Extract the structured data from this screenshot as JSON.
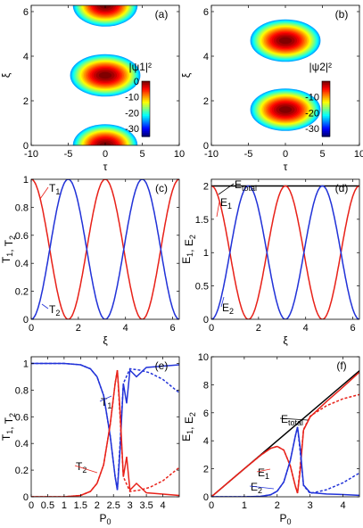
{
  "panels": [
    {
      "id": "a",
      "type": "heatmap",
      "panel_label": "(a)",
      "xlabel": "τ",
      "ylabel": "ξ",
      "xlim": [
        -10,
        10
      ],
      "ylim": [
        0,
        6.28
      ],
      "xticks": [
        -10,
        -5,
        0,
        5,
        10
      ],
      "yticks": [
        0,
        2,
        4,
        6
      ],
      "colorbar_label": "|ψ1|²",
      "colorbar_ticks": [
        0,
        -10,
        -20,
        -30
      ],
      "colorbar_range": [
        -35,
        0
      ],
      "colormap": "jet",
      "lobes": [
        {
          "center_xi": 0.0,
          "tau_halfwidth": 2.3
        },
        {
          "center_xi": 3.14,
          "tau_halfwidth": 2.5
        },
        {
          "center_xi": 6.28,
          "tau_halfwidth": 2.3
        }
      ]
    },
    {
      "id": "b",
      "type": "heatmap",
      "panel_label": "(b)",
      "xlabel": "τ",
      "ylabel": "ξ",
      "xlim": [
        -10,
        10
      ],
      "ylim": [
        0,
        6.28
      ],
      "xticks": [
        -10,
        -5,
        0,
        5,
        10
      ],
      "yticks": [
        0,
        2,
        4,
        6
      ],
      "colorbar_label": "|ψ2|²",
      "colorbar_ticks": [
        -10,
        -20,
        -30
      ],
      "colorbar_range": [
        -35,
        0
      ],
      "colormap": "jet",
      "lobes": [
        {
          "center_xi": 1.6,
          "tau_halfwidth": 2.5
        },
        {
          "center_xi": 4.7,
          "tau_halfwidth": 2.5
        }
      ]
    },
    {
      "id": "c",
      "type": "line",
      "panel_label": "(c)",
      "xlabel": "ξ",
      "ylabel": "T1, T2",
      "xlim": [
        0,
        6.28
      ],
      "ylim": [
        0,
        1
      ],
      "xticks": [
        0,
        2,
        4,
        6
      ],
      "yticks": [
        0,
        0.2,
        0.4,
        0.6,
        0.8,
        1
      ],
      "series": [
        {
          "name": "T1",
          "color": "#e8221a",
          "formula": "cos2",
          "period_xi": 3.14
        },
        {
          "name": "T2",
          "color": "#2233d8",
          "formula": "sin2",
          "period_xi": 3.14
        }
      ],
      "annotations": [
        {
          "text": "T",
          "sub": "1",
          "color": "#e8221a"
        },
        {
          "text": "T",
          "sub": "2",
          "color": "#2233d8"
        }
      ]
    },
    {
      "id": "d",
      "type": "line",
      "panel_label": "(d)",
      "xlabel": "ξ",
      "ylabel": "E1, E2",
      "xlim": [
        0,
        6.28
      ],
      "ylim": [
        0,
        2.1
      ],
      "xticks": [
        0,
        2,
        4,
        6
      ],
      "yticks": [
        0,
        0.5,
        1,
        1.5,
        2
      ],
      "series": [
        {
          "name": "Etotal",
          "color": "#000000",
          "constant": 2.0
        },
        {
          "name": "E1",
          "color": "#e8221a",
          "formula": "cos2",
          "amplitude": 2.0,
          "period_xi": 3.14
        },
        {
          "name": "E2",
          "color": "#2233d8",
          "formula": "sin2",
          "amplitude": 2.0,
          "period_xi": 3.14
        }
      ],
      "annotations": [
        {
          "text": "E",
          "sub": "total",
          "color": "#000000"
        },
        {
          "text": "E",
          "sub": "1",
          "color": "#e8221a"
        },
        {
          "text": "E",
          "sub": "2",
          "color": "#2233d8"
        }
      ]
    },
    {
      "id": "e",
      "type": "line",
      "panel_label": "(e)",
      "xlabel": "P0",
      "ylabel": "T1, T2",
      "xlim": [
        0,
        4.5
      ],
      "ylim": [
        0,
        1.05
      ],
      "xticks": [
        0,
        0.5,
        1,
        1.5,
        2,
        2.5,
        3,
        3.5,
        4
      ],
      "yticks": [
        0,
        0.2,
        0.4,
        0.6,
        0.8,
        1
      ],
      "series": [
        {
          "name": "T1",
          "color": "#2233d8",
          "style": "solid",
          "x": [
            0,
            1,
            1.5,
            1.8,
            2,
            2.2,
            2.4,
            2.55,
            2.62,
            2.7,
            2.8,
            2.9,
            3.0,
            3.2,
            3.5,
            4.0,
            4.5
          ],
          "y": [
            1.0,
            1.0,
            0.99,
            0.96,
            0.9,
            0.76,
            0.46,
            0.15,
            0.05,
            0.35,
            0.85,
            0.7,
            0.95,
            0.9,
            0.97,
            0.98,
            0.99
          ]
        },
        {
          "name": "T1 (dashed)",
          "color": "#2233d8",
          "style": "dashed",
          "x": [
            0,
            1,
            1.5,
            1.8,
            2,
            2.2,
            2.4,
            2.55,
            2.62,
            2.7,
            2.8,
            3.0,
            3.3,
            3.6,
            4.0,
            4.5
          ],
          "y": [
            1.0,
            1.0,
            0.99,
            0.96,
            0.9,
            0.76,
            0.46,
            0.15,
            0.05,
            0.4,
            0.85,
            0.96,
            0.95,
            0.93,
            0.88,
            0.78
          ]
        },
        {
          "name": "T2",
          "color": "#e8221a",
          "style": "solid",
          "x": [
            0,
            1,
            1.5,
            1.8,
            2,
            2.2,
            2.4,
            2.55,
            2.62,
            2.7,
            2.8,
            2.9,
            3.0,
            3.2,
            3.5,
            4.0,
            4.5
          ],
          "y": [
            0.0,
            0.0,
            0.01,
            0.04,
            0.1,
            0.24,
            0.54,
            0.85,
            0.95,
            0.65,
            0.15,
            0.3,
            0.05,
            0.1,
            0.03,
            0.02,
            0.01
          ]
        },
        {
          "name": "T2 (dashed)",
          "color": "#e8221a",
          "style": "dashed",
          "x": [
            0,
            1,
            1.5,
            1.8,
            2,
            2.2,
            2.4,
            2.55,
            2.62,
            2.7,
            2.8,
            3.0,
            3.3,
            3.6,
            4.0,
            4.5
          ],
          "y": [
            0.0,
            0.0,
            0.01,
            0.04,
            0.1,
            0.24,
            0.54,
            0.85,
            0.95,
            0.6,
            0.15,
            0.04,
            0.05,
            0.07,
            0.12,
            0.22
          ]
        }
      ],
      "annotations": [
        {
          "text": "T",
          "sub": "1",
          "color": "#2233d8"
        },
        {
          "text": "T",
          "sub": "2",
          "color": "#e8221a"
        }
      ]
    },
    {
      "id": "f",
      "type": "line",
      "panel_label": "(f)",
      "xlabel": "P0",
      "ylabel": "E1, E2",
      "xlim": [
        0,
        4.5
      ],
      "ylim": [
        0,
        10
      ],
      "xticks": [
        0,
        1,
        2,
        3,
        4
      ],
      "yticks": [
        0,
        2,
        4,
        6,
        8,
        10
      ],
      "series": [
        {
          "name": "Etotal",
          "color": "#000000",
          "style": "solid",
          "x": [
            0,
            4.5
          ],
          "y": [
            0,
            9.0
          ]
        },
        {
          "name": "E1",
          "color": "#e8221a",
          "style": "solid",
          "x": [
            0,
            1,
            1.5,
            1.8,
            2,
            2.2,
            2.4,
            2.55,
            2.62,
            2.7,
            2.8,
            3.0,
            3.5,
            4.0,
            4.5
          ],
          "y": [
            0,
            2.0,
            2.97,
            3.46,
            3.6,
            3.34,
            2.21,
            0.77,
            0.26,
            1.89,
            4.76,
            5.7,
            6.8,
            7.84,
            8.9
          ]
        },
        {
          "name": "E1 (dashed)",
          "color": "#e8221a",
          "style": "dashed",
          "x": [
            0,
            1,
            1.5,
            1.8,
            2,
            2.2,
            2.4,
            2.55,
            2.62,
            2.7,
            2.8,
            3.0,
            3.5,
            4.0,
            4.5
          ],
          "y": [
            0,
            2.0,
            2.97,
            3.46,
            3.6,
            3.34,
            2.21,
            0.77,
            0.26,
            2.2,
            4.8,
            5.76,
            6.5,
            7.0,
            7.3
          ]
        },
        {
          "name": "E2",
          "color": "#2233d8",
          "style": "solid",
          "x": [
            0,
            1,
            1.5,
            1.8,
            2,
            2.2,
            2.4,
            2.55,
            2.62,
            2.7,
            2.8,
            3.0,
            3.5,
            4.0,
            4.5
          ],
          "y": [
            0,
            0,
            0.03,
            0.14,
            0.4,
            1.06,
            2.59,
            4.33,
            4.98,
            3.51,
            0.84,
            0.3,
            0.2,
            0.16,
            0.1
          ]
        },
        {
          "name": "E2 (dashed)",
          "color": "#2233d8",
          "style": "dashed",
          "x": [
            0,
            1,
            1.5,
            1.8,
            2,
            2.2,
            2.4,
            2.55,
            2.62,
            2.7,
            2.8,
            3.0,
            3.5,
            4.0,
            4.5
          ],
          "y": [
            0,
            0,
            0.03,
            0.14,
            0.4,
            1.06,
            2.59,
            4.33,
            4.98,
            3.2,
            0.8,
            0.24,
            0.5,
            1.0,
            1.7
          ]
        }
      ],
      "annotations": [
        {
          "text": "E",
          "sub": "total",
          "color": "#000000"
        },
        {
          "text": "E",
          "sub": "1",
          "color": "#e8221a"
        },
        {
          "text": "E",
          "sub": "2",
          "color": "#2233d8"
        }
      ]
    }
  ]
}
